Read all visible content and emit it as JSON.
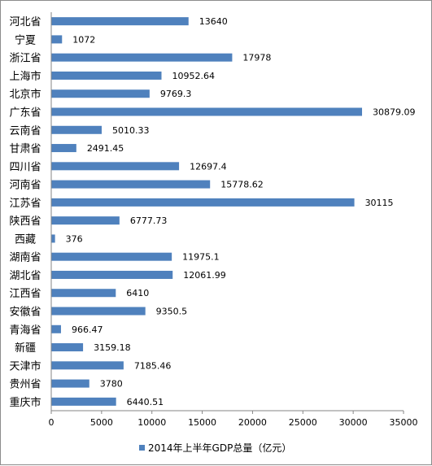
{
  "chart_data": {
    "type": "bar",
    "orientation": "horizontal",
    "categories": [
      "河北省",
      "宁夏",
      "浙江省",
      "上海市",
      "北京市",
      "广东省",
      "云南省",
      "甘肃省",
      "四川省",
      "河南省",
      "江苏省",
      "陕西省",
      "西藏",
      "湖南省",
      "湖北省",
      "江西省",
      "安徽省",
      "青海省",
      "新疆",
      "天津市",
      "贵州省",
      "重庆市"
    ],
    "series": [
      {
        "name": "2014年上半年GDP总量（亿元）",
        "color": "#4f81bd",
        "values": [
          13640,
          1072,
          17978,
          10952.64,
          9769.3,
          30879.09,
          5010.33,
          2491.45,
          12697.4,
          15778.62,
          30115,
          6777.73,
          376,
          11975.1,
          12061.99,
          6410,
          9350.5,
          966.47,
          3159.18,
          7185.46,
          3780,
          6440.51
        ],
        "value_labels": [
          "13640",
          "1072",
          "17978",
          "10952.64",
          "9769.3",
          "30879.09",
          "5010.33",
          "2491.45",
          "12697.4",
          "15778.62",
          "30115",
          "6777.73",
          "376",
          "11975.1",
          "12061.99",
          "6410",
          "9350.5",
          "966.47",
          "3159.18",
          "7185.46",
          "3780",
          "6440.51"
        ]
      }
    ],
    "xlim": [
      0,
      35000
    ],
    "xticks": [
      0,
      5000,
      10000,
      15000,
      20000,
      25000,
      30000,
      35000
    ],
    "xtick_labels": [
      "0",
      "5000",
      "10000",
      "15000",
      "20000",
      "25000",
      "30000",
      "35000"
    ],
    "grid": false,
    "legend_position": "bottom"
  }
}
